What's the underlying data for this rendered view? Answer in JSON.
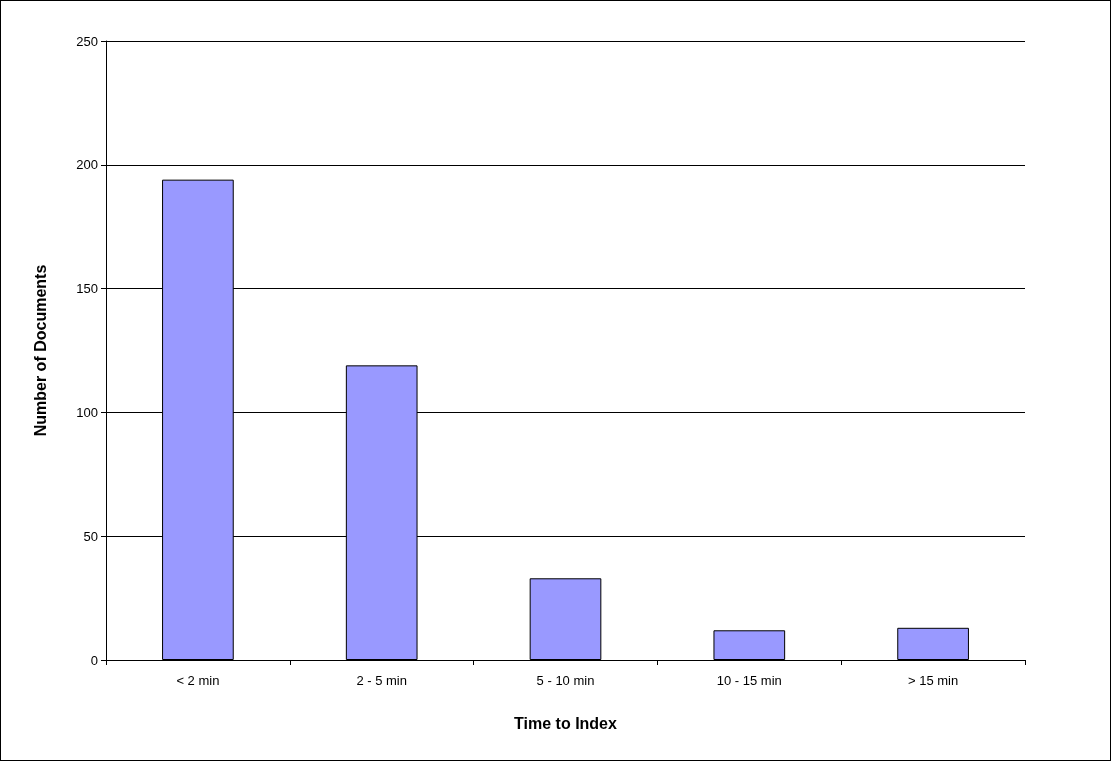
{
  "chart_data": {
    "type": "bar",
    "xlabel": "Time to Index",
    "ylabel": "Number of Documents",
    "categories": [
      "< 2 min",
      "2 - 5 min",
      "5 - 10 min",
      "10 - 15 min",
      "> 15 min"
    ],
    "values": [
      194,
      119,
      33,
      12,
      13
    ],
    "color": "#9999ff",
    "ylim": [
      0,
      250
    ],
    "yticks": [
      0,
      50,
      100,
      150,
      200,
      250
    ],
    "grid": "y"
  }
}
